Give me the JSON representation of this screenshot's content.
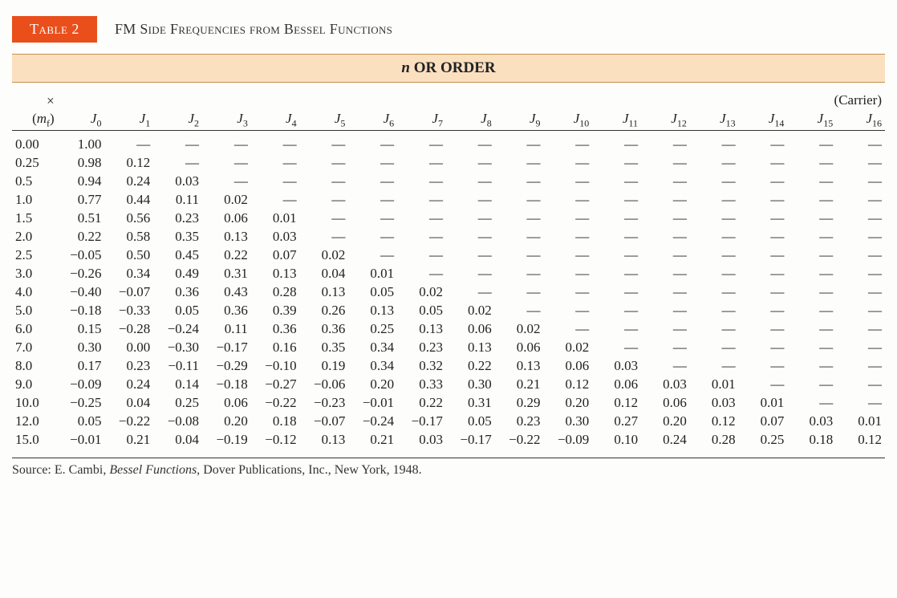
{
  "header": {
    "tab_label": "Table 2",
    "title": "FM Side Frequencies from Bessel Functions",
    "order_bar_prefix_ital": "n",
    "order_bar_rest": " OR ORDER"
  },
  "carrier": {
    "symbol": "×",
    "label": "(Carrier)"
  },
  "row_label": {
    "open": "(",
    "base": "m",
    "sub": "f",
    "close": ")"
  },
  "columns": [
    {
      "base": "J",
      "sub": "0"
    },
    {
      "base": "J",
      "sub": "1"
    },
    {
      "base": "J",
      "sub": "2"
    },
    {
      "base": "J",
      "sub": "3"
    },
    {
      "base": "J",
      "sub": "4"
    },
    {
      "base": "J",
      "sub": "5"
    },
    {
      "base": "J",
      "sub": "6"
    },
    {
      "base": "J",
      "sub": "7"
    },
    {
      "base": "J",
      "sub": "8"
    },
    {
      "base": "J",
      "sub": "9"
    },
    {
      "base": "J",
      "sub": "10"
    },
    {
      "base": "J",
      "sub": "11"
    },
    {
      "base": "J",
      "sub": "12"
    },
    {
      "base": "J",
      "sub": "13"
    },
    {
      "base": "J",
      "sub": "14"
    },
    {
      "base": "J",
      "sub": "15"
    },
    {
      "base": "J",
      "sub": "16"
    }
  ],
  "dash": "—",
  "rows": [
    {
      "mf": "0.00",
      "v": [
        "1.00",
        null,
        null,
        null,
        null,
        null,
        null,
        null,
        null,
        null,
        null,
        null,
        null,
        null,
        null,
        null,
        null
      ]
    },
    {
      "mf": "0.25",
      "v": [
        "0.98",
        "0.12",
        null,
        null,
        null,
        null,
        null,
        null,
        null,
        null,
        null,
        null,
        null,
        null,
        null,
        null,
        null
      ]
    },
    {
      "mf": "0.5",
      "v": [
        "0.94",
        "0.24",
        "0.03",
        null,
        null,
        null,
        null,
        null,
        null,
        null,
        null,
        null,
        null,
        null,
        null,
        null,
        null
      ]
    },
    {
      "mf": "1.0",
      "v": [
        "0.77",
        "0.44",
        "0.11",
        "0.02",
        null,
        null,
        null,
        null,
        null,
        null,
        null,
        null,
        null,
        null,
        null,
        null,
        null
      ]
    },
    {
      "mf": "1.5",
      "v": [
        "0.51",
        "0.56",
        "0.23",
        "0.06",
        "0.01",
        null,
        null,
        null,
        null,
        null,
        null,
        null,
        null,
        null,
        null,
        null,
        null
      ]
    },
    {
      "mf": "2.0",
      "v": [
        "0.22",
        "0.58",
        "0.35",
        "0.13",
        "0.03",
        null,
        null,
        null,
        null,
        null,
        null,
        null,
        null,
        null,
        null,
        null,
        null
      ]
    },
    {
      "mf": "2.5",
      "v": [
        "−0.05",
        "0.50",
        "0.45",
        "0.22",
        "0.07",
        "0.02",
        null,
        null,
        null,
        null,
        null,
        null,
        null,
        null,
        null,
        null,
        null
      ]
    },
    {
      "mf": "3.0",
      "v": [
        "−0.26",
        "0.34",
        "0.49",
        "0.31",
        "0.13",
        "0.04",
        "0.01",
        null,
        null,
        null,
        null,
        null,
        null,
        null,
        null,
        null,
        null
      ]
    },
    {
      "mf": "4.0",
      "v": [
        "−0.40",
        "−0.07",
        "0.36",
        "0.43",
        "0.28",
        "0.13",
        "0.05",
        "0.02",
        null,
        null,
        null,
        null,
        null,
        null,
        null,
        null,
        null
      ]
    },
    {
      "mf": "5.0",
      "v": [
        "−0.18",
        "−0.33",
        "0.05",
        "0.36",
        "0.39",
        "0.26",
        "0.13",
        "0.05",
        "0.02",
        null,
        null,
        null,
        null,
        null,
        null,
        null,
        null
      ]
    },
    {
      "mf": "6.0",
      "v": [
        "0.15",
        "−0.28",
        "−0.24",
        "0.11",
        "0.36",
        "0.36",
        "0.25",
        "0.13",
        "0.06",
        "0.02",
        null,
        null,
        null,
        null,
        null,
        null,
        null
      ]
    },
    {
      "mf": "7.0",
      "v": [
        "0.30",
        "0.00",
        "−0.30",
        "−0.17",
        "0.16",
        "0.35",
        "0.34",
        "0.23",
        "0.13",
        "0.06",
        "0.02",
        null,
        null,
        null,
        null,
        null,
        null
      ]
    },
    {
      "mf": "8.0",
      "v": [
        "0.17",
        "0.23",
        "−0.11",
        "−0.29",
        "−0.10",
        "0.19",
        "0.34",
        "0.32",
        "0.22",
        "0.13",
        "0.06",
        "0.03",
        null,
        null,
        null,
        null,
        null
      ]
    },
    {
      "mf": "9.0",
      "v": [
        "−0.09",
        "0.24",
        "0.14",
        "−0.18",
        "−0.27",
        "−0.06",
        "0.20",
        "0.33",
        "0.30",
        "0.21",
        "0.12",
        "0.06",
        "0.03",
        "0.01",
        null,
        null,
        null
      ]
    },
    {
      "mf": "10.0",
      "v": [
        "−0.25",
        "0.04",
        "0.25",
        "0.06",
        "−0.22",
        "−0.23",
        "−0.01",
        "0.22",
        "0.31",
        "0.29",
        "0.20",
        "0.12",
        "0.06",
        "0.03",
        "0.01",
        null,
        null
      ]
    },
    {
      "mf": "12.0",
      "v": [
        "0.05",
        "−0.22",
        "−0.08",
        "0.20",
        "0.18",
        "−0.07",
        "−0.24",
        "−0.17",
        "0.05",
        "0.23",
        "0.30",
        "0.27",
        "0.20",
        "0.12",
        "0.07",
        "0.03",
        "0.01"
      ]
    },
    {
      "mf": "15.0",
      "v": [
        "−0.01",
        "0.21",
        "0.04",
        "−0.19",
        "−0.12",
        "0.13",
        "0.21",
        "0.03",
        "−0.17",
        "−0.22",
        "−0.09",
        "0.10",
        "0.24",
        "0.28",
        "0.25",
        "0.18",
        "0.12"
      ]
    }
  ],
  "footer": {
    "prefix": "Source: E. Cambi, ",
    "ital": "Bessel Functions,",
    "suffix": " Dover Publications, Inc., New York, 1948."
  },
  "style": {
    "accent": "#e94e1b",
    "band_bg": "#fbe0c0",
    "band_border": "#c2924f",
    "text": "#222222",
    "row_rule": "#333333",
    "cell_fontsize": 17,
    "header_fontsize": 18
  }
}
